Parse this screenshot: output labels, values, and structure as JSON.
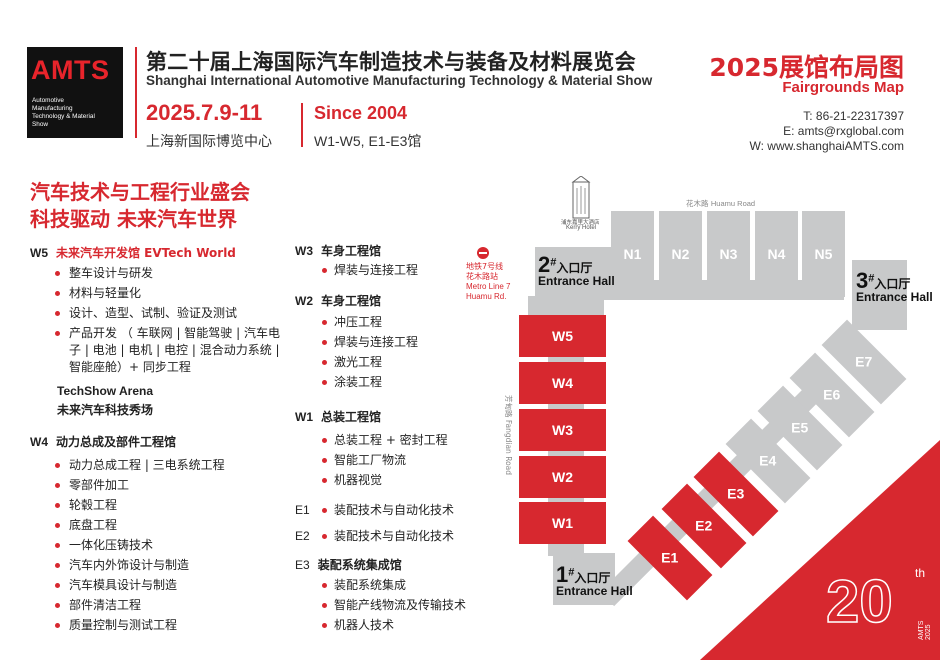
{
  "logo": {
    "text": "AMTS",
    "lines": [
      "Automotive",
      "Manufacturing",
      "Technology & Material",
      "Show"
    ]
  },
  "header": {
    "title_cn": "第二十届上海国际汽车制造技术与装备及材料展览会",
    "title_en": "Shanghai International Automotive Manufacturing Technology & Material Show",
    "date": "2025.7.9-11",
    "venue": "上海新国际博览中心",
    "since": "Since 2004",
    "halls": "W1-W5, E1-E3馆"
  },
  "map_title": {
    "cn": "2025展馆布局图",
    "en": "Fairgrounds Map"
  },
  "contact": {
    "tel": "T: 86-21-22317397",
    "email": "E: amts@rxglobal.com",
    "web": "W: www.shanghaiAMTS.com"
  },
  "slogan": {
    "line1": "汽车技术与工程行业盛会",
    "line2": "科技驱动 未来汽车世界"
  },
  "left_col": {
    "w5": {
      "code": "W5",
      "title": "未来汽车开发馆 EVTech World",
      "items": [
        "整车设计与研发",
        "材料与轻量化",
        "设计、造型、试制、验证及测试",
        "产品开发 （ 车联网 | 智能驾驶 | 汽车电",
        "子 | 电池 | 电机 | 电控 | 混合动力系统 |",
        "智能座舱）+ 同步工程"
      ]
    },
    "techshow": {
      "en": "TechShow Arena",
      "cn": "未来汽车科技秀场"
    },
    "w4": {
      "code": "W4",
      "title": "动力总成及部件工程馆",
      "items": [
        "动力总成工程 | 三电系统工程",
        "零部件加工",
        "轮毂工程",
        "底盘工程",
        "一体化压铸技术",
        "汽车内外饰设计与制造",
        "汽车模具设计与制造",
        "部件清洁工程",
        "质量控制与测试工程"
      ]
    }
  },
  "mid_col": {
    "w3": {
      "code": "W3",
      "title": "车身工程馆",
      "items": [
        "焊装与连接工程"
      ]
    },
    "w2": {
      "code": "W2",
      "title": "车身工程馆",
      "items": [
        "冲压工程",
        "焊装与连接工程",
        "激光工程",
        "涂装工程"
      ]
    },
    "w1": {
      "code": "W1",
      "title": "总装工程馆",
      "items": [
        "总装工程 + 密封工程",
        "智能工厂物流",
        "机器视觉"
      ]
    },
    "e1": {
      "code": "E1",
      "item": "装配技术与自动化技术"
    },
    "e2": {
      "code": "E2",
      "item": "装配技术与自动化技术"
    },
    "e3": {
      "code": "E3",
      "title": "装配系统集成馆",
      "items": [
        "装配系统集成",
        "智能产线物流及传输技术",
        "机器人技术"
      ]
    }
  },
  "map": {
    "hotel_cn": "浦东嘉里大酒店",
    "hotel_en": "Kerry Hotel",
    "road_north_cn": "花木路",
    "road_north_en": "Huamu Road",
    "road_west": "芳甸路 Fangdian Road",
    "metro": [
      "地铁7号线",
      "花木路站",
      "Metro Line 7",
      "Huamu Rd."
    ],
    "north_halls": [
      "N1",
      "N2",
      "N3",
      "N4",
      "N5"
    ],
    "west_halls": [
      "W5",
      "W4",
      "W3",
      "W2",
      "W1"
    ],
    "east_red": [
      "E1",
      "E2",
      "E3"
    ],
    "east_gray": [
      "E4",
      "E5",
      "E6",
      "E7"
    ],
    "entrances": [
      {
        "num": "1",
        "sup": "#",
        "cn": "入口厅",
        "en": "Entrance Hall"
      },
      {
        "num": "2",
        "sup": "#",
        "cn": "入口厅",
        "en": "Entrance Hall"
      },
      {
        "num": "3",
        "sup": "#",
        "cn": "入口厅",
        "en": "Entrance Hall"
      }
    ]
  },
  "badge": {
    "num": "20",
    "sup": "th",
    "text": "AMTS 2025"
  },
  "colors": {
    "accent": "#d7282f",
    "hall_gray": "#c8c9ca",
    "logo_bg": "#111111"
  }
}
